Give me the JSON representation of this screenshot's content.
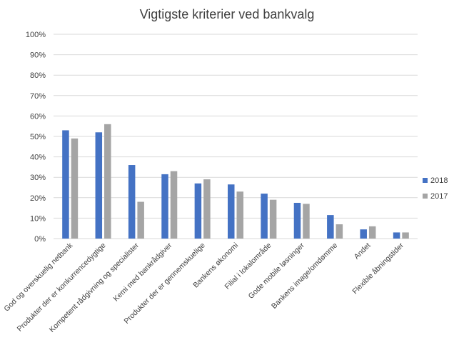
{
  "chart_data": {
    "type": "bar",
    "title": "Vigtigste kriterier ved bankvalg",
    "xlabel": "",
    "ylabel": "",
    "ylim": [
      0,
      100
    ],
    "yticks": [
      "0%",
      "10%",
      "20%",
      "30%",
      "40%",
      "50%",
      "60%",
      "70%",
      "80%",
      "90%",
      "100%"
    ],
    "grid": true,
    "legend_position": "right",
    "categories": [
      "God og overskuelig netbank",
      "Produkter der er konkurrencedygtige",
      "Kompetent rådgivning og specialister",
      "Kemi med bankrådgiver",
      "Produkter der er gennemskuelige",
      "Bankens økonomi",
      "Filial i lokalområde",
      "Gode mobile løsninger",
      "Bankens image/omdømme",
      "Andet",
      "Flexible åbningstider"
    ],
    "series": [
      {
        "name": "2018",
        "color": "#4472c4",
        "values": [
          53,
          52,
          36,
          31.5,
          27,
          26.5,
          22,
          17.5,
          11.5,
          4.5,
          3
        ]
      },
      {
        "name": "2017",
        "color": "#a5a5a5",
        "values": [
          49,
          56,
          18,
          33,
          29,
          23,
          19,
          17,
          7,
          6,
          3
        ]
      }
    ]
  }
}
